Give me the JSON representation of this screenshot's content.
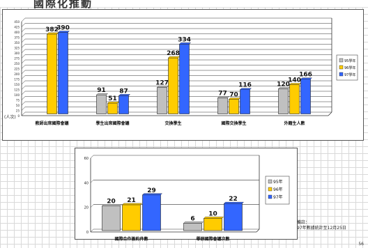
{
  "header": {
    "title": "國際化推動"
  },
  "chart_data": [
    {
      "type": "bar",
      "categories": [
        "教師出席國際會議",
        "學生出席國際會議",
        "交換學生",
        "國際交換學生",
        "外籍生人數"
      ],
      "series": [
        {
          "name": "95學年",
          "color": "#c0c0c0",
          "values": [
            null,
            91,
            127,
            77,
            120
          ]
        },
        {
          "name": "96學年",
          "color": "#ffcc00",
          "values": [
            382,
            51,
            268,
            70,
            140
          ]
        },
        {
          "name": "97學年",
          "color": "#3366ff",
          "values": [
            390,
            87,
            334,
            116,
            166
          ]
        }
      ],
      "ylabel": "(人次)",
      "yticks": [
        0,
        25,
        50,
        75,
        100,
        125,
        150,
        175,
        200,
        225,
        250,
        275,
        300,
        325,
        350,
        375,
        400,
        425,
        450
      ],
      "ylim": [
        0,
        450
      ],
      "grid": true,
      "legend_position": "right"
    },
    {
      "type": "bar",
      "categories": [
        "國際合作簽約件數",
        "舉辦國際會議次數"
      ],
      "series": [
        {
          "name": "95年",
          "color": "#c0c0c0",
          "values": [
            20,
            6
          ]
        },
        {
          "name": "96年",
          "color": "#ffcc00",
          "values": [
            21,
            10
          ]
        },
        {
          "name": "97年",
          "color": "#3366ff",
          "values": [
            29,
            22
          ]
        }
      ],
      "yticks": [
        0,
        20,
        40,
        60
      ],
      "ylim": [
        0,
        60
      ],
      "grid": true,
      "legend_position": "right"
    }
  ],
  "notes": {
    "label": "備註：",
    "text": "97年數據統計至12月25日"
  },
  "page_number": "56"
}
